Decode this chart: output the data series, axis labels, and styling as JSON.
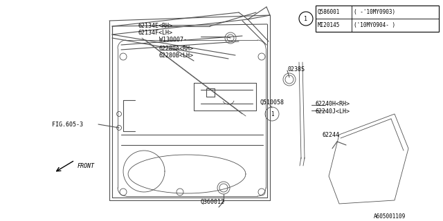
{
  "bg_color": "#ffffff",
  "line_color": "#505050",
  "text_color": "#000000",
  "fig_width": 6.4,
  "fig_height": 3.2,
  "dpi": 100,
  "table_rows": [
    [
      "Q586001",
      "( -'10MY0903)"
    ],
    [
      "MI20145",
      "('10MY0904- )"
    ]
  ]
}
